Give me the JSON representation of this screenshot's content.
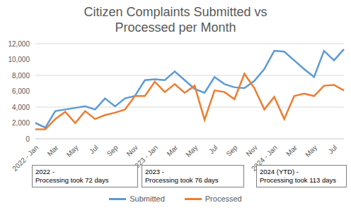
{
  "chart_data": {
    "type": "line",
    "title": "Citizen Complaints Submitted vs Processed per Month",
    "categories": [
      "2022 - Jan",
      null,
      "Mar",
      null,
      "May",
      null,
      "Jul",
      null,
      "Sep",
      null,
      "Nov",
      null,
      "2023 - Jan",
      null,
      "Mar",
      null,
      "May",
      null,
      "Jul",
      null,
      "Sep",
      null,
      "Nov",
      null,
      "2024 - Jan",
      null,
      "Mar",
      null,
      "May",
      null,
      "Jul",
      null
    ],
    "series": [
      {
        "name": "Submitted",
        "color": "#5B9BD5",
        "values": [
          2000,
          1400,
          3500,
          3700,
          3900,
          4100,
          3700,
          5100,
          4100,
          5100,
          5400,
          7400,
          7500,
          7400,
          8500,
          7400,
          6300,
          5800,
          7800,
          6900,
          6500,
          6400,
          7300,
          8800,
          11100,
          11000,
          9900,
          8800,
          7800,
          11100,
          9900,
          11300
        ]
      },
      {
        "name": "Processed",
        "color": "#ED7D31",
        "values": [
          1200,
          1200,
          2500,
          3400,
          2000,
          3500,
          2500,
          3000,
          3300,
          3700,
          5400,
          5400,
          7200,
          5900,
          6900,
          5800,
          6700,
          2400,
          6100,
          5900,
          5000,
          8200,
          6400,
          3700,
          5300,
          2500,
          5400,
          5700,
          5400,
          6700,
          6800,
          6100
        ]
      }
    ],
    "ylim": [
      0,
      12000
    ],
    "yticks": [
      0,
      {
        "value": 2000,
        "label": "2,000"
      },
      {
        "value": 4000,
        "label": "4,000"
      },
      {
        "value": 6000,
        "label": "6,000"
      },
      {
        "value": 8000,
        "label": "8,000"
      },
      {
        "value": 10000,
        "label": "10,000"
      },
      {
        "value": 12000,
        "label": "12,000"
      }
    ],
    "grid": true,
    "legend": "bottom",
    "annotations": [
      {
        "lines": [
          "2022 -",
          "Processing took 72 days"
        ]
      },
      {
        "lines": [
          "2023 -",
          "Processing took 76 days"
        ]
      },
      {
        "lines": [
          "2024 (YTD) -",
          "Processing took 113 days"
        ]
      }
    ]
  }
}
